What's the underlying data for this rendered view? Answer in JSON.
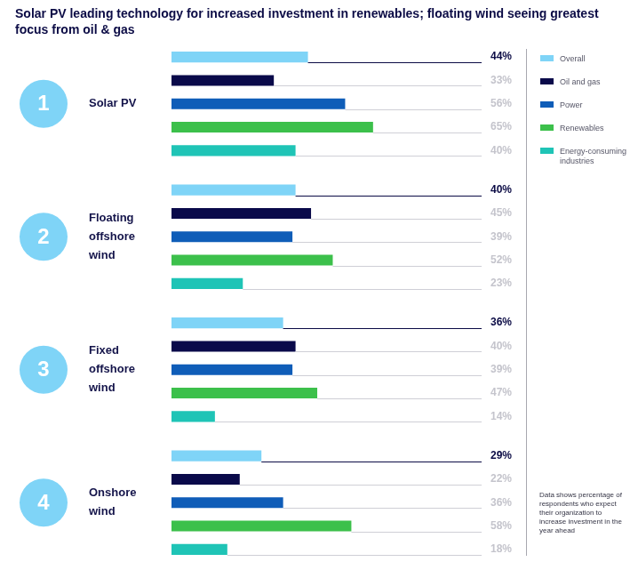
{
  "chart_data": {
    "type": "bar",
    "title": "Solar PV leading technology for increased investment in renewables; floating wind seeing greatest focus from oil & gas",
    "orientation": "horizontal",
    "categories": [
      "Solar PV",
      "Floating offshore wind",
      "Fixed offshore wind",
      "Onshore wind"
    ],
    "ranks": [
      1,
      2,
      3,
      4
    ],
    "series": [
      {
        "name": "Overall",
        "color": "#7fd4f7",
        "values": [
          44,
          40,
          36,
          29
        ],
        "value_labels": [
          "44%",
          "40%",
          "36%",
          "29%"
        ]
      },
      {
        "name": "Oil and gas",
        "color": "#0a0a4a",
        "values": [
          33,
          45,
          40,
          22
        ],
        "value_labels": [
          "33%",
          "45%",
          "40%",
          "22%"
        ]
      },
      {
        "name": "Power",
        "color": "#0f5db8",
        "values": [
          56,
          39,
          39,
          36
        ],
        "value_labels": [
          "56%",
          "39%",
          "39%",
          "36%"
        ]
      },
      {
        "name": "Renewables",
        "color": "#3cc04b",
        "values": [
          65,
          52,
          47,
          58
        ],
        "value_labels": [
          "65%",
          "52%",
          "47%",
          "58%"
        ]
      },
      {
        "name": "Energy-consuming industries",
        "color": "#1fc4b6",
        "values": [
          40,
          23,
          14,
          18
        ],
        "value_labels": [
          "40%",
          "23%",
          "14%",
          "18%"
        ]
      }
    ],
    "xlim": [
      0,
      100
    ],
    "data_labels": true,
    "tick_labels": false,
    "grid": false,
    "legend": "right",
    "note": "Data shows percentage of respondents who expect their organization to increase investment in the year ahead"
  }
}
